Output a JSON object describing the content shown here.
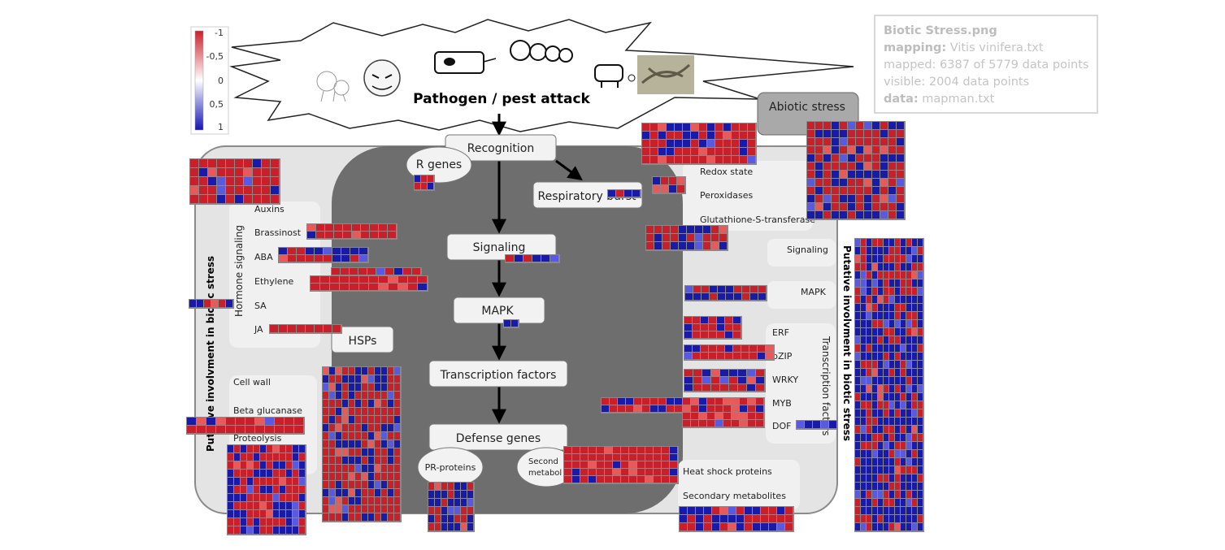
{
  "info": {
    "filename": "Biotic Stress.png",
    "mapping_key": "mapping:",
    "mapping_value": "Vitis vinifera.txt",
    "mapped": "mapped: 6387 of 5779 data points",
    "visible": "visible: 2004 data points",
    "data_key": "data:",
    "data_value": "mapman.txt"
  },
  "legend": {
    "ticks": [
      "-1",
      "-0,5",
      "0",
      "0,5",
      "1"
    ],
    "colors": {
      "negative": "#cc1f2a",
      "zero": "#ffffff",
      "positive": "#1414b4"
    }
  },
  "colors": {
    "up": "#c8202a",
    "down": "#1a1aa8",
    "light_up": "#e85a5a",
    "light_down": "#5a5ae0",
    "dark_panel": "#6e6e6e",
    "light_panel": "#e3e3e3"
  },
  "title": "Pathogen / pest attack",
  "abiotic": "Abiotic stress",
  "nodes": {
    "recognition": "Recognition",
    "r_genes": "R genes",
    "respiratory_burst": "Respiratory burst",
    "signaling": "Signaling",
    "mapk": "MAPK",
    "transcription_factors": "Transcription factors",
    "defense_genes": "Defense genes",
    "pr_proteins": "PR-proteins",
    "secondary_metabolites_short": "Second",
    "secondary_metabolites_short2": "metabol",
    "hsps": "HSPs"
  },
  "left": {
    "vertical": "Putative involvment in biotic stress",
    "hormone_signaling": "Hormone signaling",
    "auxins": "Auxins",
    "brassinost": "Brassinost",
    "aba": "ABA",
    "ethylene": "Ethylene",
    "sa": "SA",
    "ja": "JA",
    "cell_wall": "Cell wall",
    "beta_glucanase": "Beta glucanase",
    "proteolysis": "Proteolysis"
  },
  "right": {
    "vertical": "Putative involvment in biotic stress",
    "redox_state": "Redox state",
    "peroxidases": "Peroxidases",
    "gst": "Glutathione-S-transferase",
    "signaling": "Signaling",
    "mapk": "MAPK",
    "transcription_factors": "Transcription factors",
    "erf": "ERF",
    "bzip": "bZIP",
    "wrky": "WRKY",
    "myb": "MYB",
    "dof": "DOF",
    "heat_shock": "Heat shock proteins",
    "secondary_metabolites": "Secondary metabolites"
  }
}
